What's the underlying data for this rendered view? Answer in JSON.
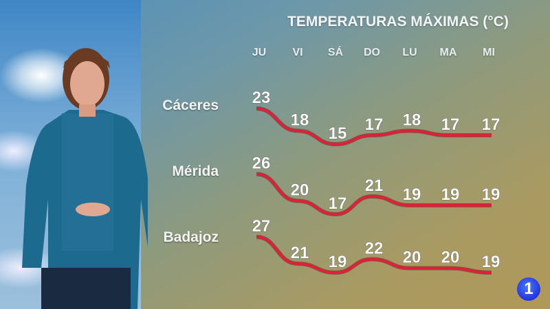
{
  "chart_data": {
    "type": "line",
    "title": "TEMPERATURAS MÁXIMAS (°C)",
    "categories": [
      "JU",
      "VI",
      "SÁ",
      "DO",
      "LU",
      "MA",
      "MI"
    ],
    "series": [
      {
        "name": "Cáceres",
        "values": [
          23,
          18,
          15,
          17,
          18,
          17,
          17
        ]
      },
      {
        "name": "Mérida",
        "values": [
          26,
          20,
          17,
          21,
          19,
          19,
          19
        ]
      },
      {
        "name": "Badajoz",
        "values": [
          27,
          21,
          19,
          22,
          20,
          20,
          19
        ]
      }
    ],
    "line_color": "#e0203a",
    "grid": false
  },
  "channel_logo": "1"
}
